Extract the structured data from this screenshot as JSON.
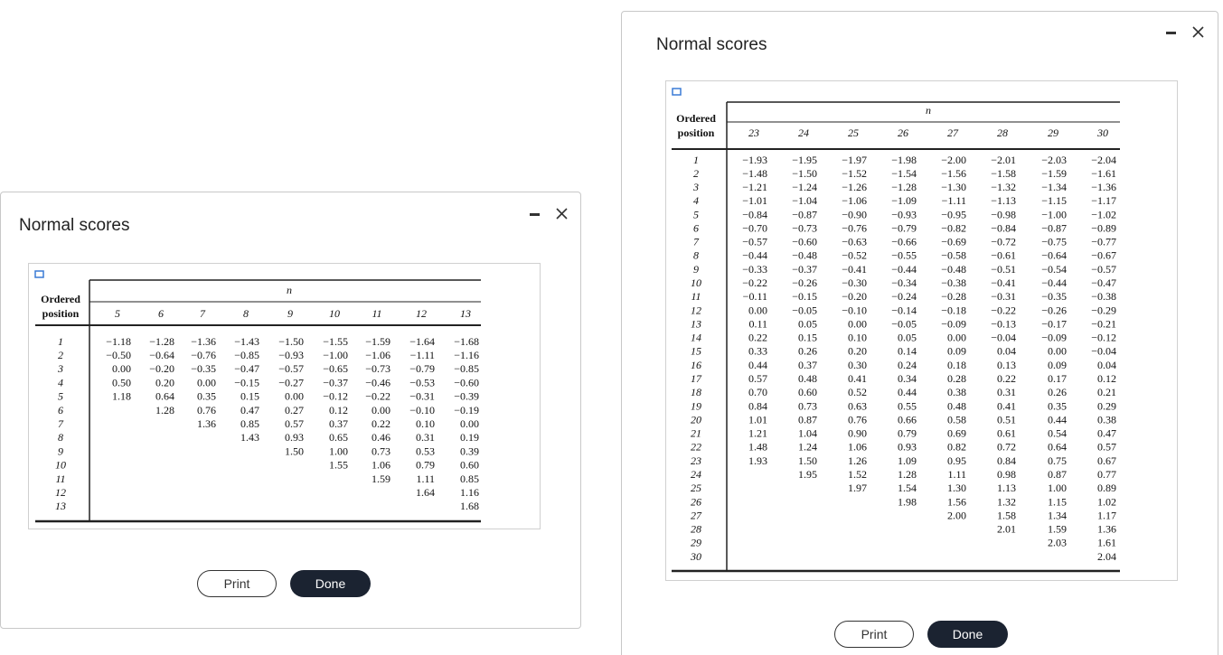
{
  "windows": [
    {
      "title": "Normal scores",
      "table": {
        "row_header": [
          "Ordered",
          "position"
        ],
        "n_label": "n",
        "columns": [
          "5",
          "6",
          "7",
          "8",
          "9",
          "10",
          "11",
          "12",
          "13"
        ],
        "positions": [
          "1",
          "2",
          "3",
          "4",
          "5",
          "6",
          "7",
          "8",
          "9",
          "10",
          "11",
          "12",
          "13"
        ],
        "scores": [
          [
            "−1.18",
            "−0.50",
            "0.00",
            "0.50",
            "1.18"
          ],
          [
            "−1.28",
            "−0.64",
            "−0.20",
            "0.20",
            "0.64",
            "1.28"
          ],
          [
            "−1.36",
            "−0.76",
            "−0.35",
            "0.00",
            "0.35",
            "0.76",
            "1.36"
          ],
          [
            "−1.43",
            "−0.85",
            "−0.47",
            "−0.15",
            "0.15",
            "0.47",
            "0.85",
            "1.43"
          ],
          [
            "−1.50",
            "−0.93",
            "−0.57",
            "−0.27",
            "0.00",
            "0.27",
            "0.57",
            "0.93",
            "1.50"
          ],
          [
            "−1.55",
            "−1.00",
            "−0.65",
            "−0.37",
            "−0.12",
            "0.12",
            "0.37",
            "0.65",
            "1.00",
            "1.55"
          ],
          [
            "−1.59",
            "−1.06",
            "−0.73",
            "−0.46",
            "−0.22",
            "0.00",
            "0.22",
            "0.46",
            "0.73",
            "1.06",
            "1.59"
          ],
          [
            "−1.64",
            "−1.11",
            "−0.79",
            "−0.53",
            "−0.31",
            "−0.10",
            "0.10",
            "0.31",
            "0.53",
            "0.79",
            "1.11",
            "1.64"
          ],
          [
            "−1.68",
            "−1.16",
            "−0.85",
            "−0.60",
            "−0.39",
            "−0.19",
            "0.00",
            "0.19",
            "0.39",
            "0.60",
            "0.85",
            "1.16",
            "1.68"
          ]
        ]
      },
      "buttons": {
        "print": "Print",
        "done": "Done"
      }
    },
    {
      "title": "Normal scores",
      "table": {
        "row_header": [
          "Ordered",
          "position"
        ],
        "n_label": "n",
        "columns": [
          "23",
          "24",
          "25",
          "26",
          "27",
          "28",
          "29",
          "30"
        ],
        "positions": [
          "1",
          "2",
          "3",
          "4",
          "5",
          "6",
          "7",
          "8",
          "9",
          "10",
          "11",
          "12",
          "13",
          "14",
          "15",
          "16",
          "17",
          "18",
          "19",
          "20",
          "21",
          "22",
          "23",
          "24",
          "25",
          "26",
          "27",
          "28",
          "29",
          "30"
        ],
        "scores": [
          [
            "−1.93",
            "−1.48",
            "−1.21",
            "−1.01",
            "−0.84",
            "−0.70",
            "−0.57",
            "−0.44",
            "−0.33",
            "−0.22",
            "−0.11",
            "0.00",
            "0.11",
            "0.22",
            "0.33",
            "0.44",
            "0.57",
            "0.70",
            "0.84",
            "1.01",
            "1.21",
            "1.48",
            "1.93"
          ],
          [
            "−1.95",
            "−1.50",
            "−1.24",
            "−1.04",
            "−0.87",
            "−0.73",
            "−0.60",
            "−0.48",
            "−0.37",
            "−0.26",
            "−0.15",
            "−0.05",
            "0.05",
            "0.15",
            "0.26",
            "0.37",
            "0.48",
            "0.60",
            "0.73",
            "0.87",
            "1.04",
            "1.24",
            "1.50",
            "1.95"
          ],
          [
            "−1.97",
            "−1.52",
            "−1.26",
            "−1.06",
            "−0.90",
            "−0.76",
            "−0.63",
            "−0.52",
            "−0.41",
            "−0.30",
            "−0.20",
            "−0.10",
            "0.00",
            "0.10",
            "0.20",
            "0.30",
            "0.41",
            "0.52",
            "0.63",
            "0.76",
            "0.90",
            "1.06",
            "1.26",
            "1.52",
            "1.97"
          ],
          [
            "−1.98",
            "−1.54",
            "−1.28",
            "−1.09",
            "−0.93",
            "−0.79",
            "−0.66",
            "−0.55",
            "−0.44",
            "−0.34",
            "−0.24",
            "−0.14",
            "−0.05",
            "0.05",
            "0.14",
            "0.24",
            "0.34",
            "0.44",
            "0.55",
            "0.66",
            "0.79",
            "0.93",
            "1.09",
            "1.28",
            "1.54",
            "1.98"
          ],
          [
            "−2.00",
            "−1.56",
            "−1.30",
            "−1.11",
            "−0.95",
            "−0.82",
            "−0.69",
            "−0.58",
            "−0.48",
            "−0.38",
            "−0.28",
            "−0.18",
            "−0.09",
            "0.00",
            "0.09",
            "0.18",
            "0.28",
            "0.38",
            "0.48",
            "0.58",
            "0.69",
            "0.82",
            "0.95",
            "1.11",
            "1.30",
            "1.56",
            "2.00"
          ],
          [
            "−2.01",
            "−1.58",
            "−1.32",
            "−1.13",
            "−0.98",
            "−0.84",
            "−0.72",
            "−0.61",
            "−0.51",
            "−0.41",
            "−0.31",
            "−0.22",
            "−0.13",
            "−0.04",
            "0.04",
            "0.13",
            "0.22",
            "0.31",
            "0.41",
            "0.51",
            "0.61",
            "0.72",
            "0.84",
            "0.98",
            "1.13",
            "1.32",
            "1.58",
            "2.01"
          ],
          [
            "−2.03",
            "−1.59",
            "−1.34",
            "−1.15",
            "−1.00",
            "−0.87",
            "−0.75",
            "−0.64",
            "−0.54",
            "−0.44",
            "−0.35",
            "−0.26",
            "−0.17",
            "−0.09",
            "0.00",
            "0.09",
            "0.17",
            "0.26",
            "0.35",
            "0.44",
            "0.54",
            "0.64",
            "0.75",
            "0.87",
            "1.00",
            "1.15",
            "1.34",
            "1.59",
            "2.03"
          ],
          [
            "−2.04",
            "−1.61",
            "−1.36",
            "−1.17",
            "−1.02",
            "−0.89",
            "−0.77",
            "−0.67",
            "−0.57",
            "−0.47",
            "−0.38",
            "−0.29",
            "−0.21",
            "−0.12",
            "−0.04",
            "0.04",
            "0.12",
            "0.21",
            "0.29",
            "0.38",
            "0.47",
            "0.57",
            "0.67",
            "0.77",
            "0.89",
            "1.02",
            "1.17",
            "1.36",
            "1.61",
            "2.04"
          ]
        ]
      },
      "buttons": {
        "print": "Print",
        "done": "Done"
      }
    }
  ]
}
